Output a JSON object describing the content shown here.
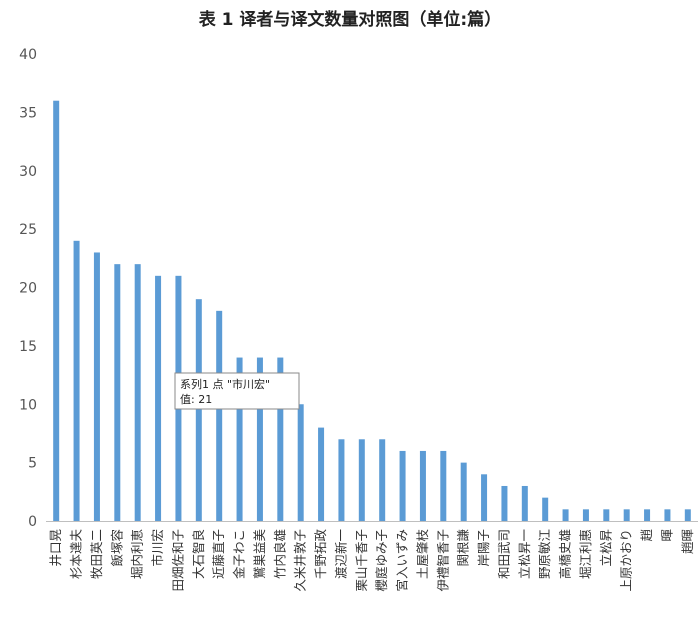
{
  "chart_data": {
    "type": "bar",
    "title": "表 1 译者与译文数量对照图（单位:篇）",
    "xlabel": "",
    "ylabel": "",
    "ylim": [
      0,
      40
    ],
    "yticks": [
      0,
      5,
      10,
      15,
      20,
      25,
      30,
      35,
      40
    ],
    "grid": false,
    "legend": "none",
    "bar_color": "#5B9BD5",
    "categories": [
      "井口晃",
      "杉本達夫",
      "牧田英二",
      "飯塚容",
      "堀内利恵",
      "市川宏",
      "田畑佐和子",
      "大石智良",
      "近藤直子",
      "金子わこ",
      "鷲巣益美",
      "竹内良雄",
      "久米井敦子",
      "千野拓政",
      "渡辺新一",
      "栗山千香子",
      "櫻庭ゆみ子",
      "宮入いずみ",
      "土屋肇枝",
      "伊禮智香子",
      "関根謙",
      "岸陽子",
      "和田武司",
      "立松昇一",
      "野原敏江",
      "高橋史雄",
      "堀江利惠",
      "立松昇",
      "上原かおり",
      "趙",
      "暉",
      "趙暉"
    ],
    "series": [
      {
        "values": [
          36,
          24,
          23,
          22,
          22,
          21,
          21,
          19,
          18,
          14,
          14,
          14,
          10,
          8,
          7,
          7,
          7,
          6,
          6,
          6,
          5,
          4,
          3,
          3,
          2,
          1,
          1,
          1,
          1,
          1,
          1,
          1
        ]
      }
    ],
    "tooltip": {
      "line1": "系列1 点 \"市川宏\"",
      "line2": "值: 21"
    }
  }
}
